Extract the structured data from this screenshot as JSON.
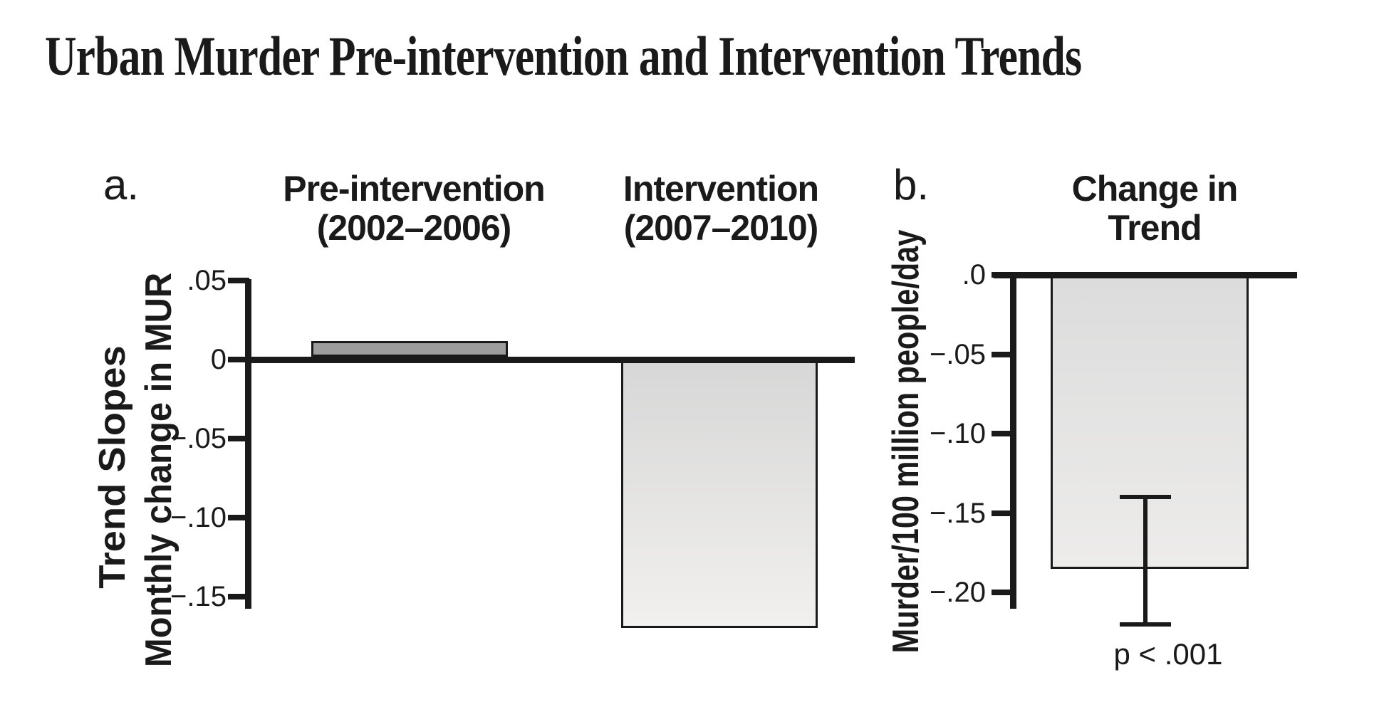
{
  "title": {
    "text": "Urban Murder Pre-intervention and Intervention Trends"
  },
  "panel_a": {
    "label": "a.",
    "headers": [
      {
        "line1": "Pre-intervention",
        "line2": "(2002–2006)"
      },
      {
        "line1": "Intervention",
        "line2": "(2007–2010)"
      }
    ],
    "ylabel_line1": "Trend Slopes",
    "ylabel_line2": "Monthly change in MUR",
    "ytick_labels": [
      ".05",
      "0",
      "−.05",
      "−.10",
      "−.15"
    ]
  },
  "panel_b": {
    "label": "b.",
    "header": {
      "line1": "Change in",
      "line2": "Trend"
    },
    "ylabel": "Murder/100 million people/day",
    "ytick_labels": [
      ".0",
      "−.05",
      "−.10",
      "−.15",
      "−.20"
    ],
    "p_value": "p < .001"
  },
  "colors": {
    "ink": "#1a1a1a",
    "background": "#ffffff",
    "pre_bar_fill": "#9d9d9d",
    "intervention_bar_top": "#d7d7d7",
    "intervention_bar_bottom": "#f1f0ee",
    "change_bar_top": "#dcdcdc",
    "change_bar_bottom": "#edeceа"
  },
  "chart_data": [
    {
      "type": "bar",
      "panel": "a",
      "title": "Trend Slopes",
      "categories": [
        "Pre-intervention (2002–2006)",
        "Intervention (2007–2010)"
      ],
      "values": [
        0.01,
        -0.17
      ],
      "xlabel": "",
      "ylabel": "Trend Slopes — Monthly change in MUR",
      "yticks": [
        0.05,
        0,
        -0.05,
        -0.1,
        -0.15
      ],
      "ylim": [
        -0.175,
        0.05
      ],
      "grid": false,
      "legend": false
    },
    {
      "type": "bar",
      "panel": "b",
      "title": "Change in Trend",
      "categories": [
        "Change in Trend"
      ],
      "values": [
        -0.185
      ],
      "error_bars": [
        {
          "low": -0.22,
          "high": -0.14
        }
      ],
      "annotation": "p < .001",
      "xlabel": "",
      "ylabel": "Murder/100 million people/day",
      "yticks": [
        0.0,
        -0.05,
        -0.1,
        -0.15,
        -0.2
      ],
      "ylim": [
        -0.225,
        0.0
      ],
      "grid": false,
      "legend": false
    }
  ]
}
